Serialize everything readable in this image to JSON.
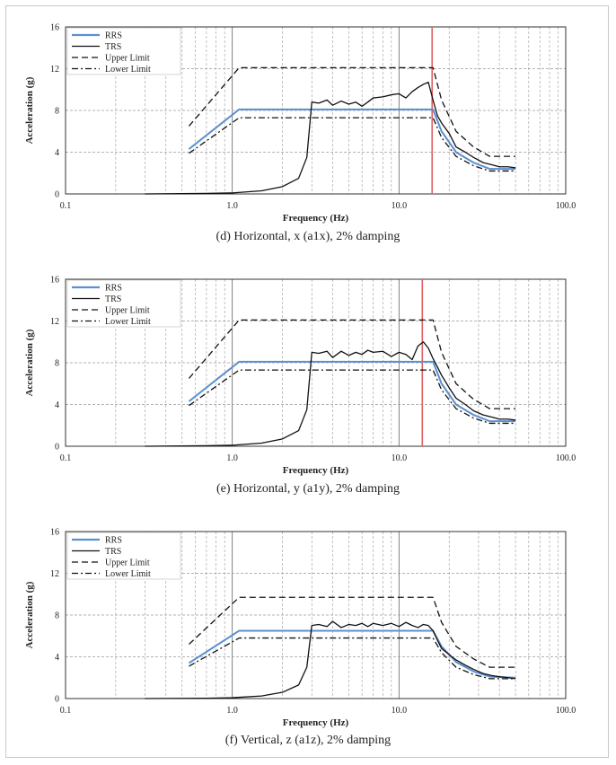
{
  "chart_data": [
    {
      "type": "line",
      "caption": "(d)  Horizontal, x (a1x), 2% damping",
      "xlabel": "Frequency (Hz)",
      "ylabel": "Acceleration (g)",
      "xscale": "log",
      "xlim": [
        0.1,
        100
      ],
      "ylim": [
        0,
        16
      ],
      "xticks": [
        "0.1",
        "1.0",
        "10.0",
        "100.0"
      ],
      "yticks": [
        "0",
        "4",
        "8",
        "12",
        "16"
      ],
      "grid": true,
      "legend_position": "top-left",
      "vertical_marker": {
        "x": 15.8,
        "color": "#e06060"
      },
      "series": [
        {
          "name": "RRS",
          "style": "solid",
          "color": "#5b8fd1",
          "points": [
            [
              0.55,
              4.3
            ],
            [
              1.1,
              8.1
            ],
            [
              16,
              8.1
            ],
            [
              18,
              6.0
            ],
            [
              22,
              4.0
            ],
            [
              28,
              3.0
            ],
            [
              35,
              2.4
            ],
            [
              50,
              2.4
            ]
          ]
        },
        {
          "name": "TRS",
          "style": "solid",
          "color": "#111111",
          "points": [
            [
              0.3,
              0.0
            ],
            [
              0.7,
              0.05
            ],
            [
              1.0,
              0.1
            ],
            [
              1.5,
              0.3
            ],
            [
              2.0,
              0.7
            ],
            [
              2.5,
              1.5
            ],
            [
              2.8,
              3.5
            ],
            [
              3.0,
              8.8
            ],
            [
              3.3,
              8.7
            ],
            [
              3.7,
              9.0
            ],
            [
              4.0,
              8.5
            ],
            [
              4.5,
              8.9
            ],
            [
              5.0,
              8.6
            ],
            [
              5.5,
              8.8
            ],
            [
              6.0,
              8.4
            ],
            [
              6.5,
              8.8
            ],
            [
              7.0,
              9.2
            ],
            [
              8.0,
              9.3
            ],
            [
              9.0,
              9.5
            ],
            [
              10.0,
              9.6
            ],
            [
              11.0,
              9.2
            ],
            [
              12.0,
              9.8
            ],
            [
              13.0,
              10.2
            ],
            [
              14.0,
              10.5
            ],
            [
              15.0,
              10.7
            ],
            [
              16.0,
              9.0
            ],
            [
              17.0,
              7.5
            ],
            [
              18.0,
              6.8
            ],
            [
              20.0,
              5.8
            ],
            [
              22.0,
              4.5
            ],
            [
              25.0,
              4.0
            ],
            [
              28.0,
              3.5
            ],
            [
              32.0,
              3.0
            ],
            [
              36.0,
              2.8
            ],
            [
              40.0,
              2.6
            ],
            [
              45.0,
              2.6
            ],
            [
              50.0,
              2.5
            ]
          ]
        },
        {
          "name": "Upper Limit",
          "style": "dashed",
          "color": "#111111",
          "points": [
            [
              0.55,
              6.5
            ],
            [
              1.1,
              12.1
            ],
            [
              16,
              12.1
            ],
            [
              18,
              9.0
            ],
            [
              22,
              6.0
            ],
            [
              28,
              4.5
            ],
            [
              35,
              3.6
            ],
            [
              50,
              3.6
            ]
          ]
        },
        {
          "name": "Lower Limit",
          "style": "dashdot",
          "color": "#111111",
          "points": [
            [
              0.55,
              3.9
            ],
            [
              1.1,
              7.3
            ],
            [
              16,
              7.3
            ],
            [
              18,
              5.4
            ],
            [
              22,
              3.6
            ],
            [
              28,
              2.7
            ],
            [
              35,
              2.2
            ],
            [
              50,
              2.2
            ]
          ]
        }
      ]
    },
    {
      "type": "line",
      "caption": "(e)  Horizontal, y (a1y), 2% damping",
      "xlabel": "Frequency (Hz)",
      "ylabel": "Acceleration (g)",
      "xscale": "log",
      "xlim": [
        0.1,
        100
      ],
      "ylim": [
        0,
        16
      ],
      "xticks": [
        "0.1",
        "1.0",
        "10.0",
        "100.0"
      ],
      "yticks": [
        "0",
        "4",
        "8",
        "12",
        "16"
      ],
      "grid": true,
      "legend_position": "top-left",
      "vertical_marker": {
        "x": 13.8,
        "color": "#e06060"
      },
      "series": [
        {
          "name": "RRS",
          "style": "solid",
          "color": "#5b8fd1",
          "points": [
            [
              0.55,
              4.3
            ],
            [
              1.1,
              8.1
            ],
            [
              16,
              8.1
            ],
            [
              18,
              6.0
            ],
            [
              22,
              4.0
            ],
            [
              28,
              3.0
            ],
            [
              35,
              2.4
            ],
            [
              50,
              2.4
            ]
          ]
        },
        {
          "name": "TRS",
          "style": "solid",
          "color": "#111111",
          "points": [
            [
              0.3,
              0.0
            ],
            [
              0.7,
              0.05
            ],
            [
              1.0,
              0.1
            ],
            [
              1.5,
              0.3
            ],
            [
              2.0,
              0.7
            ],
            [
              2.5,
              1.5
            ],
            [
              2.8,
              3.5
            ],
            [
              3.0,
              9.0
            ],
            [
              3.3,
              8.9
            ],
            [
              3.7,
              9.1
            ],
            [
              4.0,
              8.5
            ],
            [
              4.5,
              9.1
            ],
            [
              5.0,
              8.7
            ],
            [
              5.5,
              9.0
            ],
            [
              6.0,
              8.8
            ],
            [
              6.5,
              9.2
            ],
            [
              7.0,
              9.0
            ],
            [
              8.0,
              9.1
            ],
            [
              9.0,
              8.6
            ],
            [
              10.0,
              9.0
            ],
            [
              11.0,
              8.8
            ],
            [
              12.0,
              8.3
            ],
            [
              13.0,
              9.6
            ],
            [
              14.0,
              10.0
            ],
            [
              15.0,
              9.4
            ],
            [
              16.0,
              8.4
            ],
            [
              17.0,
              7.6
            ],
            [
              18.0,
              6.8
            ],
            [
              20.0,
              5.6
            ],
            [
              22.0,
              4.6
            ],
            [
              25.0,
              4.0
            ],
            [
              28.0,
              3.4
            ],
            [
              32.0,
              3.0
            ],
            [
              36.0,
              2.8
            ],
            [
              40.0,
              2.6
            ],
            [
              45.0,
              2.6
            ],
            [
              50.0,
              2.5
            ]
          ]
        },
        {
          "name": "Upper Limit",
          "style": "dashed",
          "color": "#111111",
          "points": [
            [
              0.55,
              6.5
            ],
            [
              1.1,
              12.1
            ],
            [
              16,
              12.1
            ],
            [
              18,
              9.0
            ],
            [
              22,
              6.0
            ],
            [
              28,
              4.5
            ],
            [
              35,
              3.6
            ],
            [
              50,
              3.6
            ]
          ]
        },
        {
          "name": "Lower Limit",
          "style": "dashdot",
          "color": "#111111",
          "points": [
            [
              0.55,
              3.9
            ],
            [
              1.1,
              7.3
            ],
            [
              16,
              7.3
            ],
            [
              18,
              5.4
            ],
            [
              22,
              3.6
            ],
            [
              28,
              2.7
            ],
            [
              35,
              2.2
            ],
            [
              50,
              2.2
            ]
          ]
        }
      ]
    },
    {
      "type": "line",
      "caption": "(f)  Vertical, z (a1z), 2% damping",
      "xlabel": "Frequency (Hz)",
      "ylabel": "Acceleration (g)",
      "xscale": "log",
      "xlim": [
        0.1,
        100
      ],
      "ylim": [
        0,
        16
      ],
      "xticks": [
        "0.1",
        "1.0",
        "10.0",
        "100.0"
      ],
      "yticks": [
        "0",
        "4",
        "8",
        "12",
        "16"
      ],
      "grid": true,
      "legend_position": "top-left",
      "series": [
        {
          "name": "RRS",
          "style": "solid",
          "color": "#5b8fd1",
          "points": [
            [
              0.55,
              3.4
            ],
            [
              1.1,
              6.5
            ],
            [
              16,
              6.5
            ],
            [
              18,
              5.0
            ],
            [
              22,
              3.5
            ],
            [
              28,
              2.6
            ],
            [
              35,
              2.1
            ],
            [
              50,
              2.0
            ]
          ]
        },
        {
          "name": "TRS",
          "style": "solid",
          "color": "#111111",
          "points": [
            [
              0.3,
              0.0
            ],
            [
              0.7,
              0.03
            ],
            [
              1.0,
              0.08
            ],
            [
              1.5,
              0.25
            ],
            [
              2.0,
              0.6
            ],
            [
              2.5,
              1.3
            ],
            [
              2.8,
              3.0
            ],
            [
              3.0,
              7.0
            ],
            [
              3.3,
              7.1
            ],
            [
              3.7,
              6.9
            ],
            [
              4.0,
              7.4
            ],
            [
              4.5,
              6.8
            ],
            [
              5.0,
              7.1
            ],
            [
              5.5,
              7.0
            ],
            [
              6.0,
              7.2
            ],
            [
              6.5,
              6.9
            ],
            [
              7.0,
              7.2
            ],
            [
              8.0,
              7.0
            ],
            [
              9.0,
              7.2
            ],
            [
              10.0,
              6.9
            ],
            [
              11.0,
              7.3
            ],
            [
              12.0,
              7.0
            ],
            [
              13.0,
              6.8
            ],
            [
              14.0,
              7.1
            ],
            [
              15.0,
              7.0
            ],
            [
              16.0,
              6.5
            ],
            [
              17.0,
              5.6
            ],
            [
              18.0,
              4.8
            ],
            [
              20.0,
              4.2
            ],
            [
              22.0,
              3.7
            ],
            [
              25.0,
              3.2
            ],
            [
              28.0,
              2.8
            ],
            [
              32.0,
              2.4
            ],
            [
              36.0,
              2.2
            ],
            [
              40.0,
              2.1
            ],
            [
              45.0,
              2.0
            ],
            [
              50.0,
              1.9
            ]
          ]
        },
        {
          "name": "Upper Limit",
          "style": "dashed",
          "color": "#111111",
          "points": [
            [
              0.55,
              5.2
            ],
            [
              1.1,
              9.7
            ],
            [
              16,
              9.7
            ],
            [
              18,
              7.3
            ],
            [
              22,
              5.0
            ],
            [
              28,
              3.8
            ],
            [
              35,
              3.0
            ],
            [
              50,
              3.0
            ]
          ]
        },
        {
          "name": "Lower Limit",
          "style": "dashdot",
          "color": "#111111",
          "points": [
            [
              0.55,
              3.1
            ],
            [
              1.1,
              5.8
            ],
            [
              16,
              5.8
            ],
            [
              18,
              4.4
            ],
            [
              22,
              3.0
            ],
            [
              28,
              2.3
            ],
            [
              35,
              1.9
            ],
            [
              50,
              1.9
            ]
          ]
        }
      ]
    }
  ]
}
